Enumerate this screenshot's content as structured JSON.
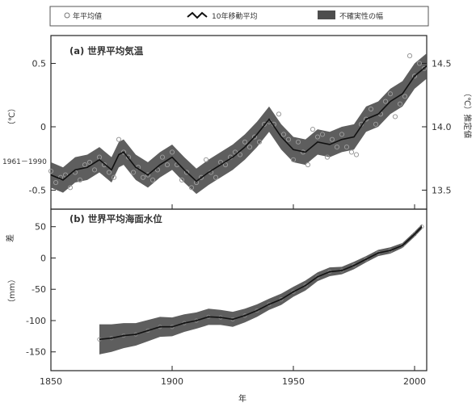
{
  "legend": {
    "observed": "年平均値",
    "smoothed": "10年移動平均",
    "uncertainty": "不確実性の幅"
  },
  "axis": {
    "x_label": "年",
    "left_top_label": "（℃）",
    "left_top_baseline": "1961－1990",
    "left_bottom_label": "（mm）",
    "left_bottom_diff": "差",
    "right_top_label": "（℃）推定値"
  },
  "chart_data": [
    {
      "type": "line",
      "title": "(a) 世界平均気温",
      "xlim": [
        1850,
        2005
      ],
      "ylim": [
        -0.65,
        0.72
      ],
      "yticks": [
        -0.5,
        0.0,
        0.5
      ],
      "right_ticks": [
        13.5,
        14.0,
        14.5
      ],
      "right_axis_offset": 14.0,
      "xticks": [
        1850,
        1900,
        1950,
        2000
      ],
      "grid": false,
      "legend_position": "top",
      "series": [
        {
          "name": "10年移動平均",
          "x": [
            1850,
            1855,
            1860,
            1865,
            1870,
            1875,
            1878,
            1880,
            1885,
            1890,
            1895,
            1900,
            1905,
            1910,
            1915,
            1920,
            1925,
            1930,
            1935,
            1940,
            1945,
            1950,
            1955,
            1960,
            1965,
            1970,
            1975,
            1980,
            1985,
            1990,
            1995,
            2000,
            2005
          ],
          "values": [
            -0.38,
            -0.42,
            -0.34,
            -0.32,
            -0.26,
            -0.34,
            -0.22,
            -0.2,
            -0.32,
            -0.38,
            -0.3,
            -0.24,
            -0.34,
            -0.43,
            -0.36,
            -0.3,
            -0.24,
            -0.16,
            -0.06,
            0.06,
            -0.08,
            -0.18,
            -0.2,
            -0.12,
            -0.14,
            -0.1,
            -0.08,
            0.06,
            0.1,
            0.2,
            0.26,
            0.4,
            0.48
          ]
        },
        {
          "name": "年平均値",
          "x": [
            1850,
            1852,
            1854,
            1856,
            1858,
            1860,
            1862,
            1864,
            1866,
            1868,
            1870,
            1872,
            1874,
            1876,
            1878,
            1880,
            1882,
            1884,
            1886,
            1888,
            1890,
            1892,
            1894,
            1896,
            1898,
            1900,
            1902,
            1904,
            1906,
            1908,
            1910,
            1912,
            1914,
            1916,
            1918,
            1920,
            1922,
            1924,
            1926,
            1928,
            1930,
            1932,
            1934,
            1936,
            1938,
            1940,
            1942,
            1944,
            1946,
            1948,
            1950,
            1952,
            1954,
            1956,
            1958,
            1960,
            1962,
            1964,
            1966,
            1968,
            1970,
            1972,
            1974,
            1976,
            1978,
            1980,
            1982,
            1984,
            1986,
            1988,
            1990,
            1992,
            1994,
            1996,
            1998,
            2000,
            2002,
            2004
          ],
          "values": [
            -0.35,
            -0.44,
            -0.4,
            -0.38,
            -0.48,
            -0.36,
            -0.42,
            -0.3,
            -0.28,
            -0.34,
            -0.24,
            -0.3,
            -0.36,
            -0.4,
            -0.1,
            -0.2,
            -0.24,
            -0.36,
            -0.32,
            -0.4,
            -0.38,
            -0.42,
            -0.34,
            -0.24,
            -0.3,
            -0.2,
            -0.3,
            -0.42,
            -0.36,
            -0.48,
            -0.44,
            -0.4,
            -0.26,
            -0.36,
            -0.4,
            -0.28,
            -0.3,
            -0.24,
            -0.2,
            -0.22,
            -0.12,
            -0.16,
            -0.08,
            -0.12,
            0.02,
            0.04,
            0.02,
            0.1,
            -0.06,
            -0.1,
            -0.26,
            -0.12,
            -0.2,
            -0.3,
            -0.02,
            -0.08,
            -0.06,
            -0.24,
            -0.1,
            -0.16,
            -0.06,
            -0.16,
            -0.2,
            -0.22,
            0.02,
            0.06,
            0.14,
            0.02,
            0.1,
            0.2,
            0.26,
            0.08,
            0.18,
            0.24,
            0.56,
            0.4,
            0.5,
            0.46
          ]
        }
      ],
      "band_half_width": 0.1
    },
    {
      "type": "line",
      "title": "(b) 世界平均海面水位",
      "xlim": [
        1850,
        2005
      ],
      "ylim": [
        -180,
        78
      ],
      "yticks": [
        -150,
        -100,
        -50,
        0,
        50
      ],
      "xticks": [
        1850,
        1900,
        1950,
        2000
      ],
      "grid": false,
      "series": [
        {
          "name": "10年移動平均",
          "x": [
            1870,
            1875,
            1880,
            1885,
            1890,
            1895,
            1900,
            1905,
            1910,
            1915,
            1920,
            1925,
            1930,
            1935,
            1940,
            1945,
            1950,
            1955,
            1960,
            1965,
            1970,
            1975,
            1980,
            1985,
            1990,
            1995,
            2000,
            2003
          ],
          "values": [
            -130,
            -128,
            -124,
            -122,
            -116,
            -110,
            -110,
            -104,
            -100,
            -94,
            -95,
            -98,
            -92,
            -84,
            -74,
            -66,
            -54,
            -44,
            -30,
            -22,
            -20,
            -12,
            -2,
            8,
            12,
            20,
            38,
            50
          ]
        }
      ],
      "band_half_width": [
        24,
        22,
        20,
        18,
        17,
        16,
        15,
        14,
        13,
        13,
        12,
        12,
        11,
        10,
        9,
        9,
        8,
        8,
        7,
        7,
        6,
        6,
        5,
        5,
        5,
        4,
        4,
        4
      ]
    }
  ],
  "colors": {
    "band": "#4d4d4d",
    "band_light": "#8a8a8a",
    "line": "#111111",
    "marker": "#9a9a9a",
    "frame": "#222222"
  }
}
